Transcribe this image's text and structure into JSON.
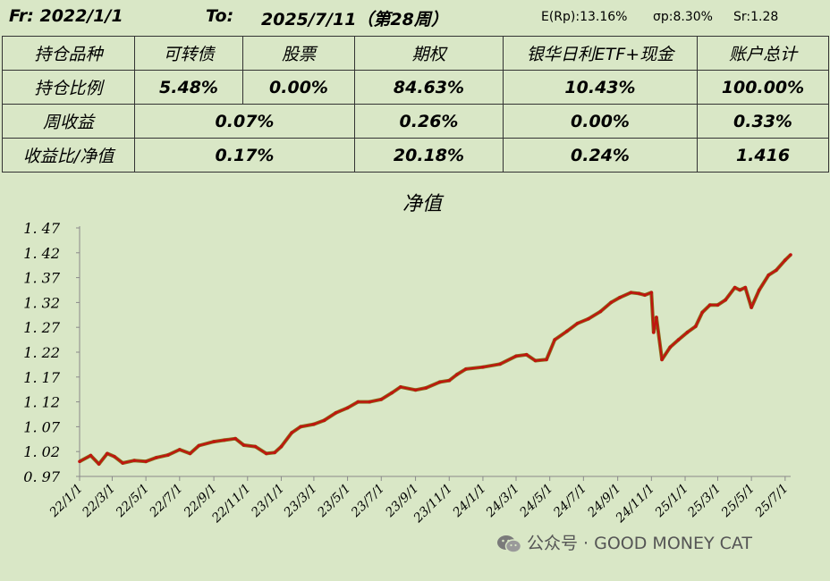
{
  "header": {
    "from": "Fr: 2022/1/1",
    "to_label": "To:",
    "to_date": "2025/7/11（第28周）",
    "erp": "E(Rp):13.16%",
    "sigma": "σp:8.30%",
    "sr": "Sr:1.28"
  },
  "table": {
    "rows": [
      [
        "持仓品种",
        "可转债",
        "股票",
        "期权",
        "银华日利ETF+现金",
        "账户总计"
      ],
      [
        "持仓比例",
        "5.48%",
        "0.00%",
        "84.63%",
        "10.43%",
        "100.00%"
      ],
      [
        "周收益",
        "0.07%",
        "0.26%",
        "0.00%",
        "0.33%"
      ],
      [
        "收益比/净值",
        "0.17%",
        "20.18%",
        "0.24%",
        "1.416"
      ]
    ]
  },
  "chart_data": {
    "type": "line",
    "title": "净值",
    "xlabel": "",
    "ylabel": "",
    "ylim": [
      0.97,
      1.47
    ],
    "yticks": [
      "0.97",
      "1.02",
      "1.07",
      "1.12",
      "1.17",
      "1.22",
      "1.27",
      "1.32",
      "1.37",
      "1.42",
      "1.47"
    ],
    "xticks": [
      "22/1/1",
      "22/3/1",
      "22/5/1",
      "22/7/1",
      "22/9/1",
      "22/11/1",
      "23/1/1",
      "23/3/1",
      "23/5/1",
      "23/7/1",
      "23/9/1",
      "23/11/1",
      "24/1/1",
      "24/3/1",
      "24/5/1",
      "24/7/1",
      "24/9/1",
      "24/11/1",
      "25/1/1",
      "25/3/1",
      "25/5/1",
      "25/7/1"
    ],
    "grid": false,
    "series": [
      {
        "name": "",
        "color": "#c0150f",
        "points": [
          [
            "2022-01-01",
            1.0
          ],
          [
            "2022-01-21",
            1.012
          ],
          [
            "2022-02-05",
            0.995
          ],
          [
            "2022-02-20",
            1.016
          ],
          [
            "2022-03-05",
            1.01
          ],
          [
            "2022-03-20",
            0.997
          ],
          [
            "2022-04-10",
            1.002
          ],
          [
            "2022-05-01",
            1.0
          ],
          [
            "2022-05-20",
            1.008
          ],
          [
            "2022-06-10",
            1.013
          ],
          [
            "2022-07-01",
            1.024
          ],
          [
            "2022-07-20",
            1.016
          ],
          [
            "2022-08-05",
            1.032
          ],
          [
            "2022-09-01",
            1.04
          ],
          [
            "2022-09-20",
            1.043
          ],
          [
            "2022-10-10",
            1.046
          ],
          [
            "2022-10-25",
            1.033
          ],
          [
            "2022-11-15",
            1.03
          ],
          [
            "2022-12-05",
            1.016
          ],
          [
            "2022-12-20",
            1.018
          ],
          [
            "2023-01-01",
            1.03
          ],
          [
            "2023-01-20",
            1.058
          ],
          [
            "2023-02-05",
            1.07
          ],
          [
            "2023-03-01",
            1.075
          ],
          [
            "2023-03-20",
            1.083
          ],
          [
            "2023-04-10",
            1.098
          ],
          [
            "2023-05-01",
            1.108
          ],
          [
            "2023-05-20",
            1.12
          ],
          [
            "2023-06-10",
            1.12
          ],
          [
            "2023-07-01",
            1.125
          ],
          [
            "2023-07-20",
            1.138
          ],
          [
            "2023-08-05",
            1.15
          ],
          [
            "2023-09-01",
            1.144
          ],
          [
            "2023-09-20",
            1.148
          ],
          [
            "2023-10-15",
            1.16
          ],
          [
            "2023-11-01",
            1.163
          ],
          [
            "2023-11-15",
            1.175
          ],
          [
            "2023-12-01",
            1.186
          ],
          [
            "2024-01-01",
            1.19
          ],
          [
            "2024-02-01",
            1.196
          ],
          [
            "2024-03-01",
            1.212
          ],
          [
            "2024-03-20",
            1.215
          ],
          [
            "2024-04-05",
            1.203
          ],
          [
            "2024-04-25",
            1.205
          ],
          [
            "2024-05-10",
            1.245
          ],
          [
            "2024-06-01",
            1.262
          ],
          [
            "2024-06-20",
            1.278
          ],
          [
            "2024-07-10",
            1.287
          ],
          [
            "2024-08-01",
            1.302
          ],
          [
            "2024-08-20",
            1.32
          ],
          [
            "2024-09-05",
            1.33
          ],
          [
            "2024-09-25",
            1.34
          ],
          [
            "2024-10-10",
            1.338
          ],
          [
            "2024-10-20",
            1.335
          ],
          [
            "2024-11-01",
            1.34
          ],
          [
            "2024-11-05",
            1.26
          ],
          [
            "2024-11-10",
            1.29
          ],
          [
            "2024-11-20",
            1.205
          ],
          [
            "2024-12-05",
            1.23
          ],
          [
            "2024-12-20",
            1.245
          ],
          [
            "2025-01-05",
            1.26
          ],
          [
            "2025-01-20",
            1.272
          ],
          [
            "2025-02-01",
            1.3
          ],
          [
            "2025-02-15",
            1.315
          ],
          [
            "2025-03-01",
            1.315
          ],
          [
            "2025-03-15",
            1.325
          ],
          [
            "2025-04-01",
            1.35
          ],
          [
            "2025-04-10",
            1.345
          ],
          [
            "2025-04-20",
            1.35
          ],
          [
            "2025-05-01",
            1.31
          ],
          [
            "2025-05-15",
            1.345
          ],
          [
            "2025-06-01",
            1.375
          ],
          [
            "2025-06-15",
            1.385
          ],
          [
            "2025-07-01",
            1.405
          ],
          [
            "2025-07-11",
            1.416
          ]
        ]
      }
    ]
  },
  "watermark": {
    "text": "公众号 · GOOD MONEY CAT"
  }
}
